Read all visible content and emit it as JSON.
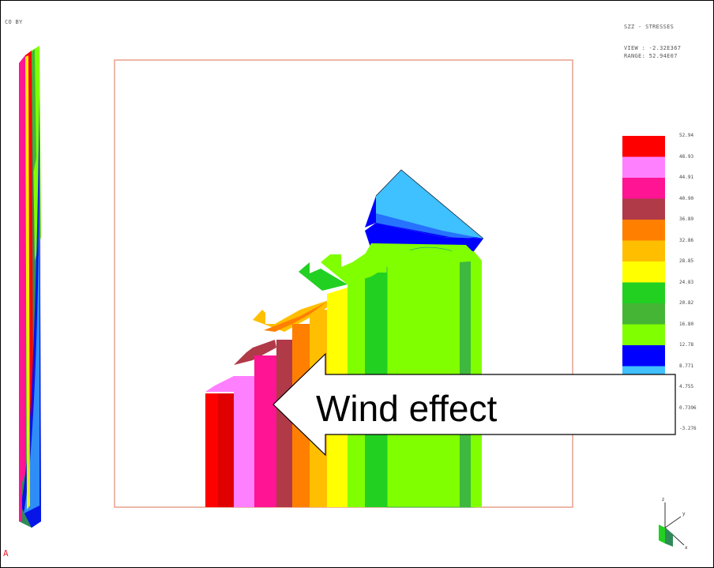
{
  "header": {
    "corner_label": "CO BY",
    "title": "SZZ - STRESSES",
    "vmin": "VIEW : -2.32E367",
    "range": "RANGE: 52.94E07"
  },
  "footer": {
    "corner_mark": "A"
  },
  "annotation": {
    "arrow_text": "Wind effect"
  },
  "legend": {
    "labels": [
      "52.94",
      "48.93",
      "44.91",
      "40.90",
      "36.89",
      "32.86",
      "28.85",
      "24.83",
      "20.82",
      "16.80",
      "12.78",
      "8.771",
      "4.755",
      "0.7396",
      "-3.276"
    ],
    "colors": [
      "#ff0000",
      "#ff80ff",
      "#ff1493",
      "#b03a48",
      "#ff7f00",
      "#ffbf00",
      "#ffff00",
      "#22d022",
      "#45b535",
      "#80ff00",
      "#0000ff",
      "#40c0ff",
      "#b0b0b0",
      "#808080"
    ]
  },
  "colors": {
    "frame_border": "#e8a08a",
    "arrow_fill": "#ffffff",
    "arrow_stroke": "#000000"
  }
}
